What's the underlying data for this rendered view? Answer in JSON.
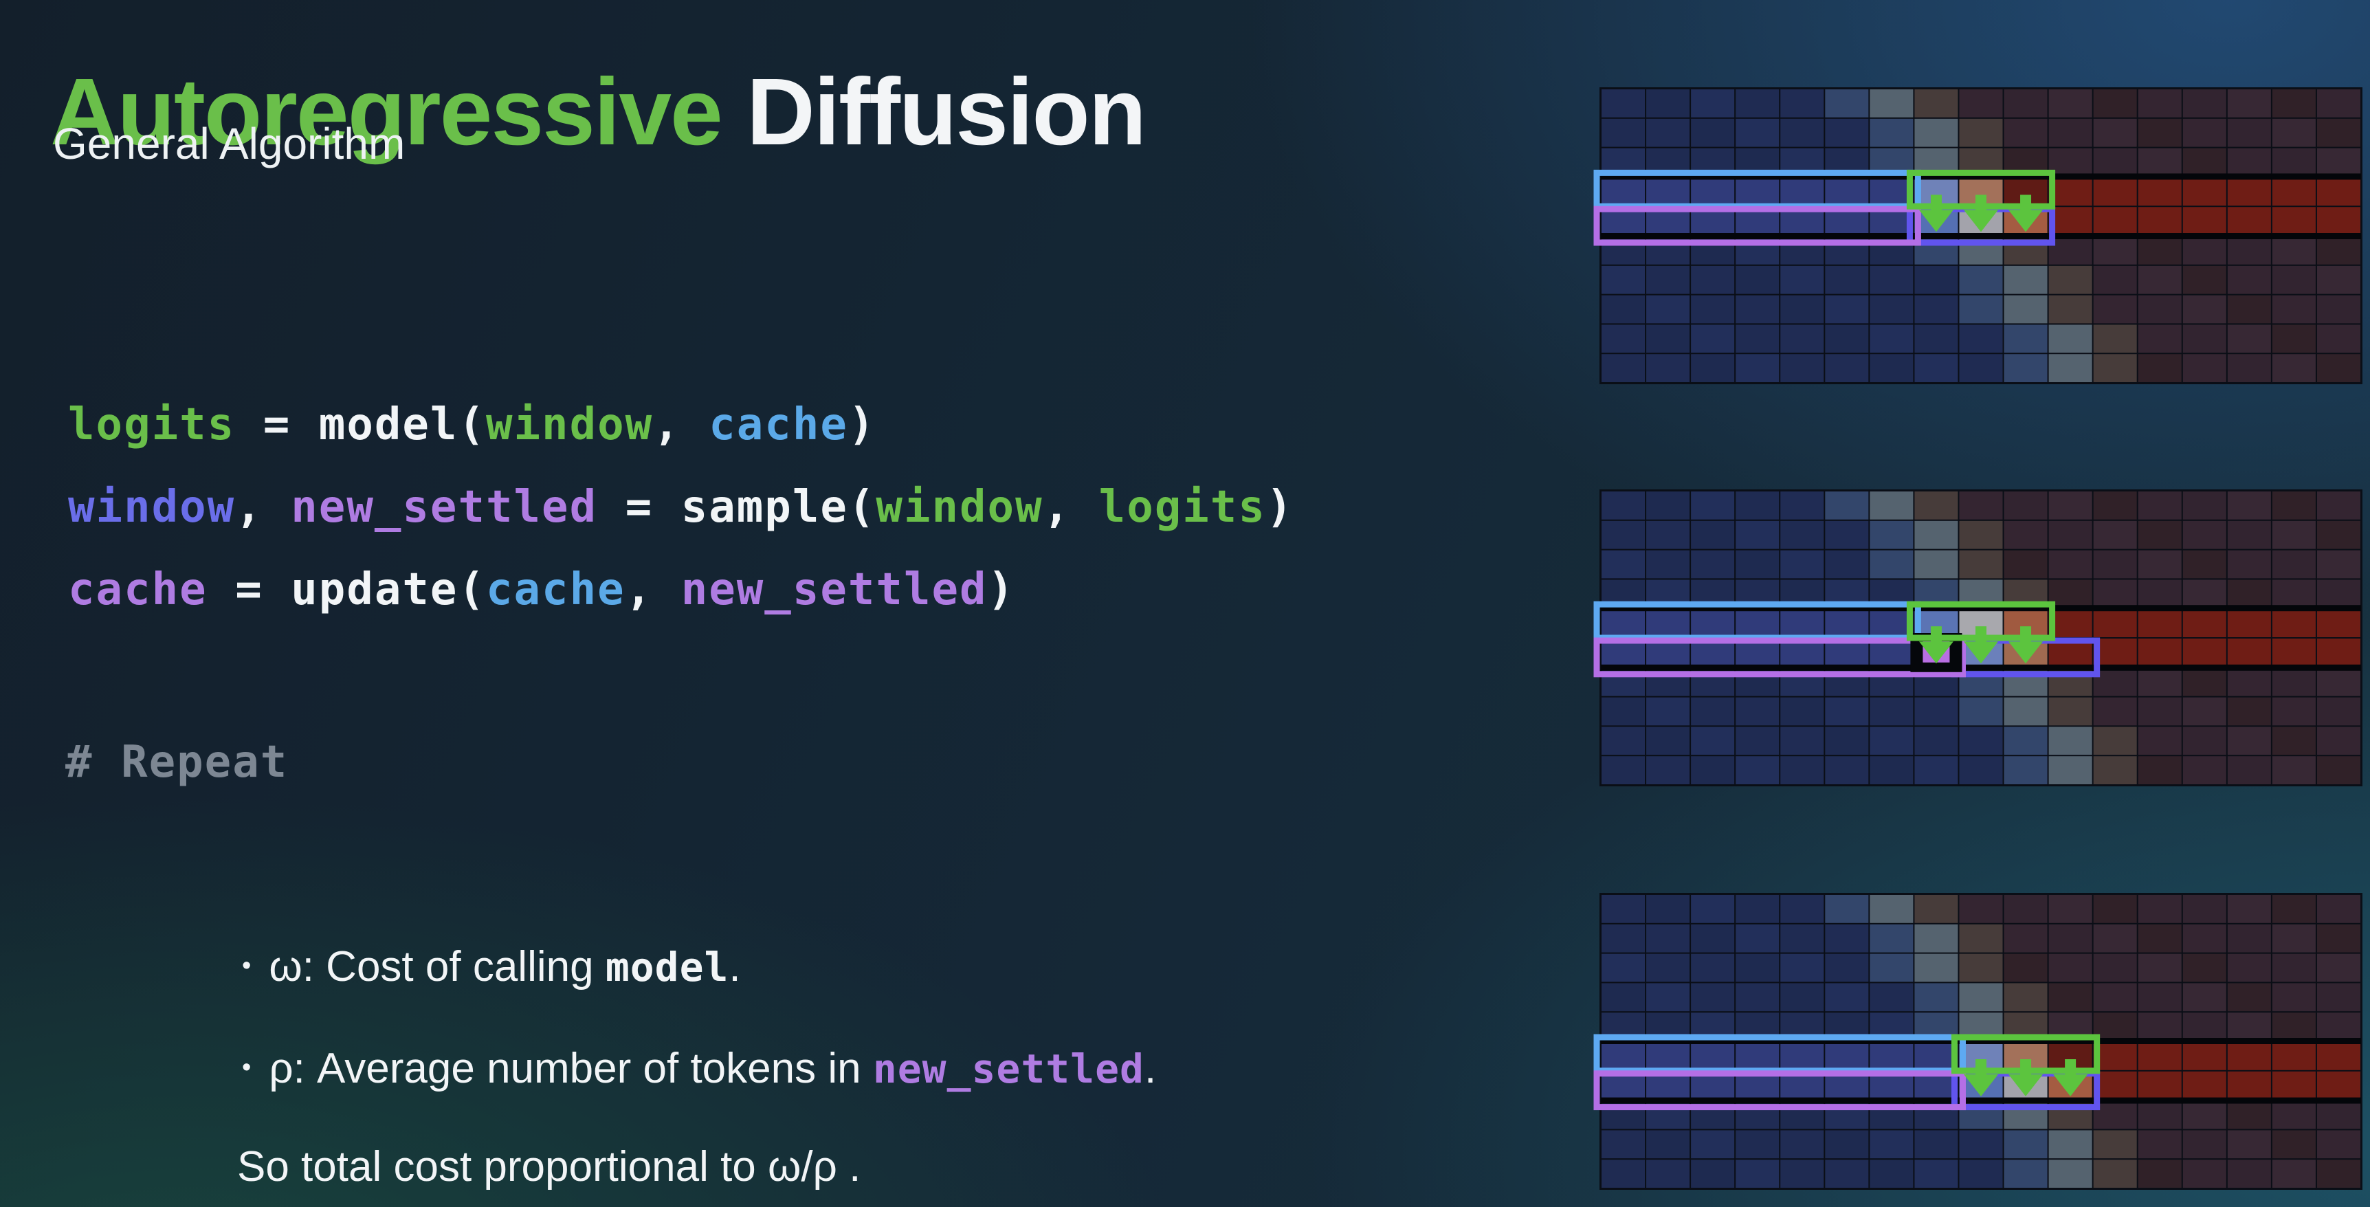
{
  "title": {
    "part1": "Autoregressive",
    "part2": " Diffusion"
  },
  "subtitle": "General Algorithm",
  "code": {
    "lines": [
      [
        {
          "t": "logits",
          "c": "green"
        },
        {
          "t": " = ",
          "c": "white"
        },
        {
          "t": "model(",
          "c": "white"
        },
        {
          "t": "window",
          "c": "green"
        },
        {
          "t": ", ",
          "c": "white"
        },
        {
          "t": "cache",
          "c": "blue"
        },
        {
          "t": ")",
          "c": "white"
        }
      ],
      [
        {
          "t": "window",
          "c": "indigo"
        },
        {
          "t": ", ",
          "c": "white"
        },
        {
          "t": "new_settled",
          "c": "purple"
        },
        {
          "t": " = ",
          "c": "white"
        },
        {
          "t": "sample(",
          "c": "white"
        },
        {
          "t": "window",
          "c": "green"
        },
        {
          "t": ", ",
          "c": "white"
        },
        {
          "t": "logits",
          "c": "green"
        },
        {
          "t": ")",
          "c": "white"
        }
      ],
      [
        {
          "t": "cache",
          "c": "purple"
        },
        {
          "t": " = ",
          "c": "white"
        },
        {
          "t": "update(",
          "c": "white"
        },
        {
          "t": "cache",
          "c": "blue"
        },
        {
          "t": ", ",
          "c": "white"
        },
        {
          "t": "new_settled",
          "c": "purple"
        },
        {
          "t": ")",
          "c": "white"
        }
      ]
    ],
    "comment": "# Repeat"
  },
  "bullets": [
    {
      "marker": "•",
      "parts": [
        {
          "t": "ω:",
          "c": "white",
          "mono": false
        },
        {
          "t": " Cost of calling ",
          "c": "white",
          "mono": false
        },
        {
          "t": "model",
          "c": "white",
          "mono": true
        },
        {
          "t": ".",
          "c": "white",
          "mono": false
        }
      ]
    },
    {
      "marker": "•",
      "parts": [
        {
          "t": "ρ:",
          "c": "white",
          "mono": false
        },
        {
          "t": " Average number of tokens in ",
          "c": "white",
          "mono": false
        },
        {
          "t": "new_settled",
          "c": "purple",
          "mono": true
        },
        {
          "t": ".",
          "c": "white",
          "mono": false
        }
      ]
    }
  ],
  "conclusion": "So total cost proportional to ω/ρ .",
  "colors": {
    "accent_green": "#6abf4a",
    "code_green": "#6abf4a",
    "code_blue": "#5ba9e8",
    "code_indigo": "#6a6ee9",
    "code_purple": "#af7ce2",
    "code_white": "#f2f5f7",
    "comment_gray": "#7d8793",
    "box_blue": "#5ea9f2",
    "box_purple": "#b46fe6",
    "box_green": "#5cc43e",
    "box_indigo": "#6154ee",
    "settled_pink": "#b96fe3",
    "cell_navy": "#202c54",
    "cell_maroon": "#342531",
    "cell_bright_blue": "#303b7a",
    "cell_bright_red": "#6f1d15",
    "cell_ramp": [
      "#33466b",
      "#55636f",
      "#473c3a"
    ],
    "grid_line": "#0a0e16",
    "row_divider": "#04060a",
    "settled_black": "#05070b"
  },
  "heatmap": {
    "cols": 17,
    "rows": 10,
    "bg_transition_start": [
      5,
      6,
      6,
      7,
      7,
      7,
      8,
      8,
      9,
      9
    ],
    "panels": [
      {
        "name": "step-1",
        "top_row": 3,
        "upper": {
          "start": 7,
          "cells": [
            "#6f82b8",
            "#a3715a",
            "#5f1b15"
          ]
        },
        "lower": {
          "start": 7,
          "cells": [
            "#5570b3",
            "#a3a3ab",
            "#a45c42"
          ]
        },
        "settled_col": null,
        "boxes": [
          {
            "kind": "window-upper",
            "color_key": "box_blue",
            "row_offset": 0,
            "cols": [
              0,
              6
            ]
          },
          {
            "kind": "frontier-upper",
            "color_key": "box_green",
            "row_offset": 0,
            "cols": [
              7,
              9
            ]
          },
          {
            "kind": "window-lower",
            "color_key": "box_purple",
            "row_offset": 1,
            "cols": [
              0,
              6
            ]
          },
          {
            "kind": "frontier-lower",
            "color_key": "box_indigo",
            "row_offset": 1,
            "cols": [
              7,
              9
            ]
          }
        ],
        "arrows": [
          7,
          8,
          9
        ]
      },
      {
        "name": "step-2",
        "top_row": 4,
        "upper": {
          "start": 7,
          "cells": [
            "#5b74b4",
            "#a8a8ad",
            "#a05a40"
          ]
        },
        "lower": {
          "start": 8,
          "cells": [
            "#6b80bb",
            "#a06a50",
            "#6e1c15"
          ]
        },
        "settled_col": 7,
        "boxes": [
          {
            "kind": "window-upper",
            "color_key": "box_blue",
            "row_offset": 0,
            "cols": [
              0,
              6
            ]
          },
          {
            "kind": "frontier-upper",
            "color_key": "box_green",
            "row_offset": 0,
            "cols": [
              7,
              9
            ]
          },
          {
            "kind": "window-lower",
            "color_key": "box_purple",
            "row_offset": 1,
            "cols": [
              0,
              7
            ]
          },
          {
            "kind": "frontier-lower",
            "color_key": "box_indigo",
            "row_offset": 1,
            "cols": [
              8,
              10
            ]
          }
        ],
        "arrows": [
          7,
          8,
          9
        ]
      },
      {
        "name": "step-3",
        "top_row": 5,
        "upper": {
          "start": 8,
          "cells": [
            "#6f82b8",
            "#a3715a",
            "#5f1b15"
          ]
        },
        "lower": {
          "start": 8,
          "cells": [
            "#5570b3",
            "#a3a3ab",
            "#a45c42"
          ]
        },
        "settled_col": null,
        "boxes": [
          {
            "kind": "window-upper",
            "color_key": "box_blue",
            "row_offset": 0,
            "cols": [
              0,
              7
            ]
          },
          {
            "kind": "frontier-upper",
            "color_key": "box_green",
            "row_offset": 0,
            "cols": [
              8,
              10
            ]
          },
          {
            "kind": "window-lower",
            "color_key": "box_purple",
            "row_offset": 1,
            "cols": [
              0,
              7
            ]
          },
          {
            "kind": "frontier-lower",
            "color_key": "box_indigo",
            "row_offset": 1,
            "cols": [
              8,
              10
            ]
          }
        ],
        "arrows": [
          8,
          9,
          10
        ]
      }
    ]
  }
}
